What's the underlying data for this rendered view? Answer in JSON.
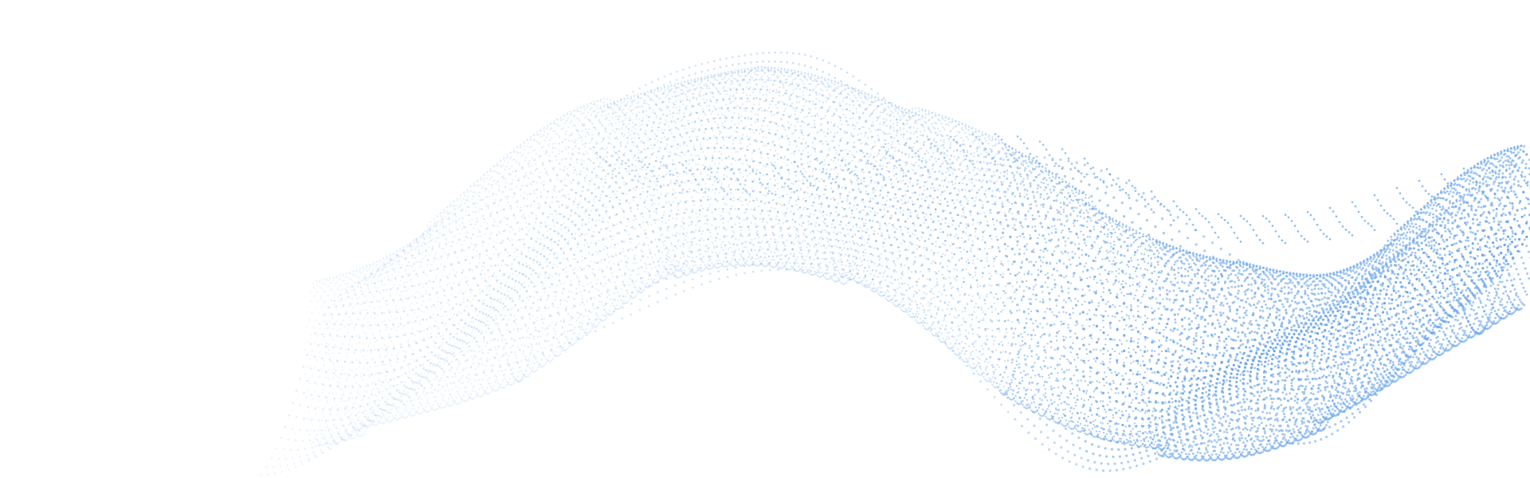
{
  "artwork": {
    "subject": "dotted-particle-wave",
    "colors": {
      "background": "#ffffff",
      "dot": "#6aa5e8"
    }
  }
}
